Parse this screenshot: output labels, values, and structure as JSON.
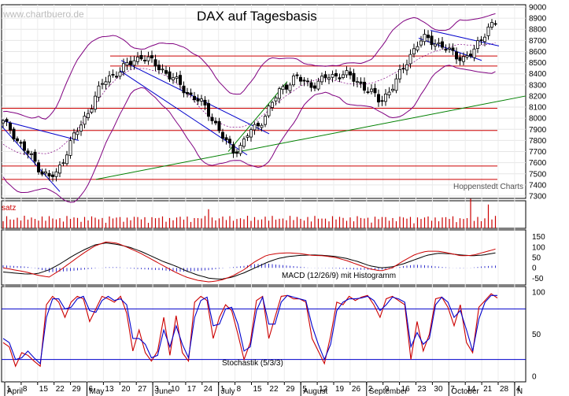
{
  "chart_data": [
    {
      "type": "candlestick",
      "title": "DAX auf Tagesbasis",
      "watermark": "www.chartbuero.de",
      "credit": "Hoppenstedt Charts",
      "y_range": [
        7300,
        9000
      ],
      "y_ticks": [
        "9000",
        "8900",
        "8800",
        "8700",
        "8600",
        "8500",
        "8400",
        "8300",
        "8200",
        "8100",
        "8000",
        "7900",
        "7800",
        "7700",
        "7600",
        "7500",
        "7400",
        "7300"
      ],
      "horizontal_lines": [
        8560,
        8470,
        8090,
        7890,
        7570,
        7450
      ],
      "support_trendline": {
        "from": [
          0.18,
          7450
        ],
        "to": [
          1.0,
          8200
        ]
      },
      "colors": {
        "up": "#ffffff",
        "down": "#000000",
        "bollinger": "#800080",
        "support": "#008000",
        "channel": "#0000cc",
        "resistance": "#cc0000"
      },
      "price_path": [
        7960,
        7900,
        7780,
        7700,
        7620,
        7520,
        7470,
        7500,
        7660,
        7820,
        7920,
        8050,
        8200,
        8320,
        8380,
        8420,
        8470,
        8520,
        8560,
        8520,
        8470,
        8420,
        8360,
        8300,
        8220,
        8180,
        8120,
        8020,
        7900,
        7780,
        7700,
        7760,
        7880,
        7920,
        8020,
        8140,
        8250,
        8310,
        8370,
        8330,
        8300,
        8320,
        8370,
        8380,
        8400,
        8380,
        8330,
        8280,
        8220,
        8150,
        8230,
        8320,
        8450,
        8580,
        8680,
        8720,
        8690,
        8650,
        8600,
        8560,
        8540,
        8580,
        8700,
        8820,
        8850
      ]
    },
    {
      "type": "bar",
      "title": "Umsatz",
      "visible_label": "satz"
    },
    {
      "type": "line",
      "title": "MACD (12/26/9) mit Histogramm",
      "y_range": [
        -75,
        175
      ],
      "y_ticks": [
        "150",
        "100",
        "50",
        "0",
        "-50"
      ],
      "series": [
        {
          "color": "#000000",
          "values": [
            -20,
            -25,
            -30,
            -28,
            -10,
            20,
            55,
            85,
            110,
            120,
            112,
            100,
            80,
            55,
            30,
            10,
            -15,
            -35,
            -50,
            -55,
            -45,
            -25,
            0,
            25,
            45,
            55,
            60,
            62,
            60,
            55,
            45,
            30,
            10,
            0,
            5,
            20,
            40,
            60,
            70,
            68,
            62,
            58,
            62,
            72
          ]
        },
        {
          "color": "#cc0000",
          "values": [
            0,
            -10,
            -20,
            -35,
            -45,
            -10,
            30,
            70,
            105,
            125,
            118,
            95,
            70,
            40,
            10,
            -20,
            -45,
            -60,
            -68,
            -60,
            -40,
            -10,
            30,
            60,
            70,
            72,
            68,
            60,
            58,
            50,
            35,
            15,
            -5,
            -15,
            0,
            35,
            65,
            80,
            80,
            70,
            58,
            60,
            75,
            90
          ]
        }
      ]
    },
    {
      "type": "line",
      "title": "Stochastik (5/3/3)",
      "y_range": [
        0,
        100
      ],
      "y_ticks": [
        "100",
        "50",
        "0"
      ],
      "levels": [
        80,
        20
      ],
      "series": [
        {
          "color": "#cc0000",
          "values": [
            40,
            35,
            12,
            28,
            25,
            18,
            12,
            85,
            95,
            88,
            70,
            88,
            95,
            92,
            65,
            80,
            95,
            92,
            88,
            95,
            75,
            30,
            55,
            28,
            18,
            30,
            70,
            25,
            72,
            28,
            18,
            88,
            95,
            90,
            45,
            70,
            85,
            78,
            50,
            20,
            40,
            90,
            95,
            45,
            70,
            95,
            96,
            92,
            92,
            88,
            45,
            30,
            15,
            48,
            88,
            85,
            95,
            90,
            94,
            96,
            85,
            70,
            92,
            95,
            90,
            85,
            20,
            65,
            30,
            50,
            92,
            94,
            82,
            60,
            85,
            40,
            28,
            82,
            90,
            98,
            93
          ]
        },
        {
          "color": "#0000cc",
          "values": [
            45,
            40,
            20,
            22,
            30,
            22,
            15,
            70,
            92,
            92,
            80,
            82,
            92,
            95,
            78,
            76,
            90,
            95,
            90,
            92,
            85,
            45,
            45,
            38,
            22,
            25,
            55,
            35,
            60,
            38,
            22,
            70,
            90,
            94,
            60,
            62,
            80,
            82,
            62,
            30,
            35,
            78,
            94,
            62,
            62,
            88,
            96,
            94,
            92,
            90,
            60,
            38,
            20,
            38,
            78,
            88,
            92,
            92,
            93,
            95,
            90,
            78,
            85,
            94,
            92,
            88,
            35,
            52,
            38,
            45,
            85,
            94,
            88,
            70,
            78,
            55,
            30,
            68,
            88,
            96,
            96
          ]
        }
      ]
    }
  ],
  "x_axis": {
    "day_labels": [
      "1",
      "8",
      "15",
      "22",
      "29",
      "6",
      "13",
      "20",
      "27",
      "3",
      "10",
      "17",
      "24",
      "1",
      "8",
      "15",
      "22",
      "29",
      "5",
      "12",
      "19",
      "26",
      "2",
      "9",
      "16",
      "23",
      "30",
      "7",
      "14",
      "21",
      "28",
      "4"
    ],
    "month_labels": [
      "April",
      "May",
      "June",
      "July",
      "August",
      "September",
      "October",
      "N"
    ]
  }
}
